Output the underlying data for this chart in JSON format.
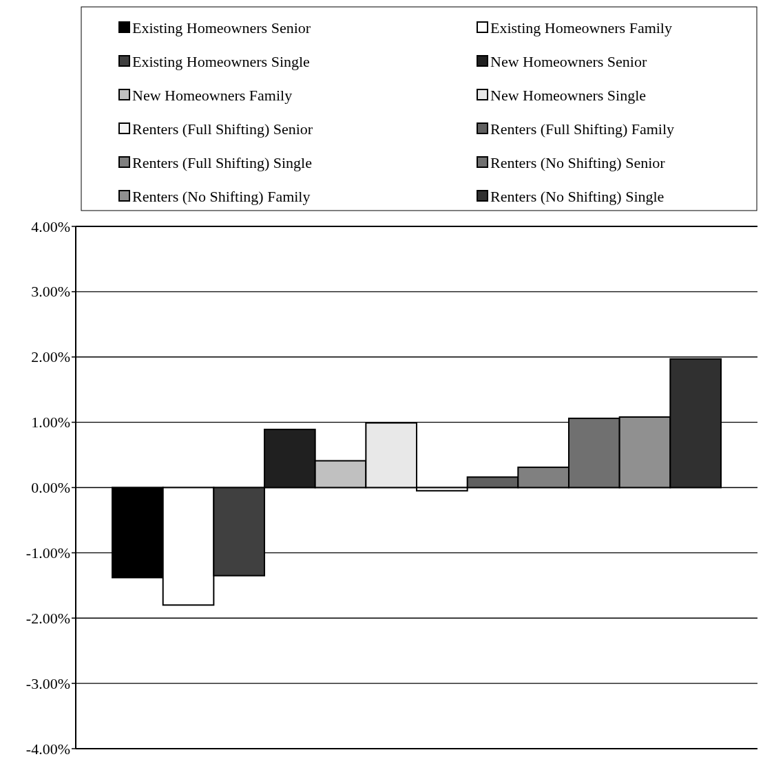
{
  "chart_data": {
    "type": "bar",
    "categories": [
      null
    ],
    "series": [
      {
        "name": "Existing Homeowners Senior",
        "color": "#000000",
        "values": [
          -1.38
        ]
      },
      {
        "name": "Existing Homeowners Family",
        "color": "#ffffff",
        "values": [
          -1.8
        ]
      },
      {
        "name": "Existing Homeowners Single",
        "color": "#404040",
        "values": [
          -1.35
        ]
      },
      {
        "name": "New Homeowners Senior",
        "color": "#202020",
        "values": [
          0.89
        ]
      },
      {
        "name": "New Homeowners Family",
        "color": "#c0c0c0",
        "values": [
          0.41
        ]
      },
      {
        "name": "New Homeowners Single",
        "color": "#e8e8e8",
        "values": [
          0.99
        ]
      },
      {
        "name": "Renters (Full Shifting) Senior",
        "color": "#f4f4f4",
        "values": [
          -0.05
        ]
      },
      {
        "name": "Renters (Full Shifting) Family",
        "color": "#606060",
        "values": [
          0.16
        ]
      },
      {
        "name": "Renters (Full Shifting) Single",
        "color": "#808080",
        "values": [
          0.31
        ]
      },
      {
        "name": "Renters (No Shifting) Senior",
        "color": "#707070",
        "values": [
          1.06
        ]
      },
      {
        "name": "Renters (No Shifting) Family",
        "color": "#909090",
        "values": [
          1.08
        ]
      },
      {
        "name": "Renters (No Shifting) Single",
        "color": "#303030",
        "values": [
          1.97
        ]
      }
    ],
    "ylim": [
      -4,
      4
    ],
    "yticks": [
      {
        "value": -4,
        "label": "-4.00%"
      },
      {
        "value": -3,
        "label": "-3.00%"
      },
      {
        "value": -2,
        "label": "-2.00%"
      },
      {
        "value": -1,
        "label": "-1.00%"
      },
      {
        "value": 0,
        "label": "0.00%"
      },
      {
        "value": 1,
        "label": "1.00%"
      },
      {
        "value": 2,
        "label": "2.00%"
      },
      {
        "value": 3,
        "label": "3.00%"
      },
      {
        "value": 4,
        "label": "4.00%"
      }
    ],
    "grid": "y",
    "legend": "top",
    "tick_labels": "y"
  }
}
